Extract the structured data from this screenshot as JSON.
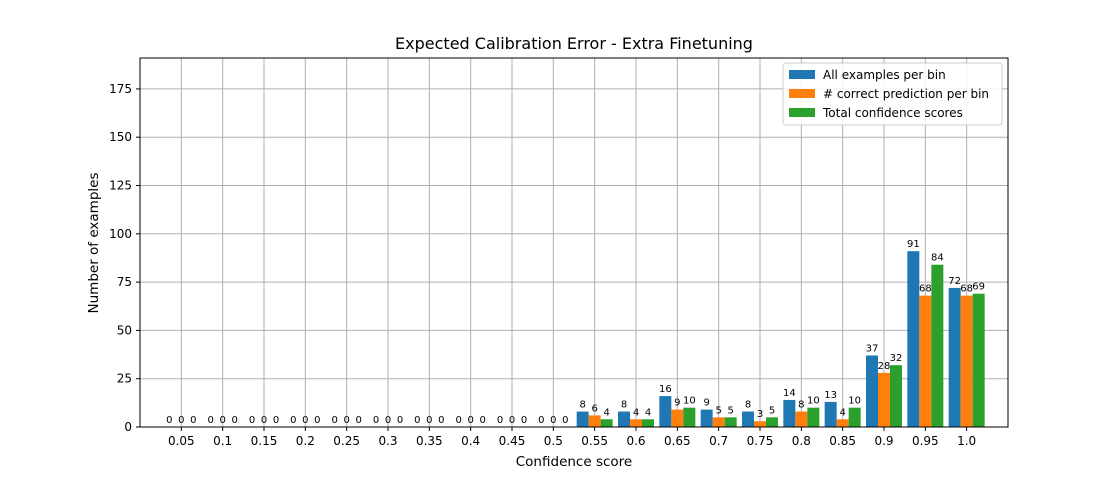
{
  "chart_data": {
    "type": "bar",
    "title": "Expected Calibration Error - Extra Finetuning",
    "xlabel": "Confidence score",
    "ylabel": "Number of examples",
    "categories": [
      "0.05",
      "0.1",
      "0.15",
      "0.2",
      "0.25",
      "0.3",
      "0.35",
      "0.4",
      "0.45",
      "0.5",
      "0.55",
      "0.6",
      "0.65",
      "0.7",
      "0.75",
      "0.8",
      "0.85",
      "0.9",
      "0.95",
      "1.0"
    ],
    "series": [
      {
        "name": "All examples per bin",
        "color": "#1f77b4",
        "values": [
          0,
          0,
          0,
          0,
          0,
          0,
          0,
          0,
          0,
          0,
          8,
          8,
          16,
          9,
          8,
          14,
          13,
          37,
          91,
          72
        ]
      },
      {
        "name": "# correct prediction per bin",
        "color": "#ff7f0e",
        "values": [
          0,
          0,
          0,
          0,
          0,
          0,
          0,
          0,
          0,
          0,
          6,
          4,
          9,
          5,
          3,
          8,
          4,
          28,
          68,
          68
        ]
      },
      {
        "name": "Total confidence scores",
        "color": "#2ca02c",
        "values": [
          0,
          0,
          0,
          0,
          0,
          0,
          0,
          0,
          0,
          0,
          4,
          4,
          10,
          5,
          5,
          10,
          10,
          32,
          84,
          69
        ]
      }
    ],
    "yticks": [
      0,
      25,
      50,
      75,
      100,
      125,
      150,
      175
    ],
    "ylim": [
      0,
      191
    ],
    "grid": true,
    "legend_position": "top-right"
  }
}
